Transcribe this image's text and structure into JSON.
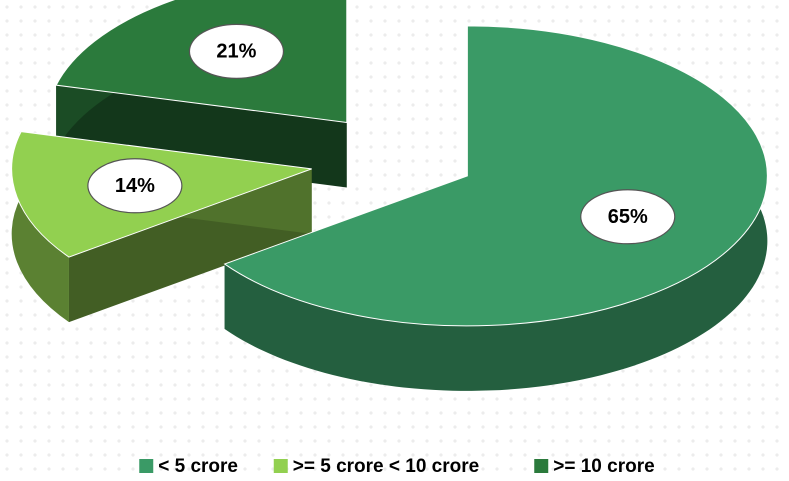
{
  "chart_data": {
    "type": "pie3d",
    "categories": [
      "< 5 crore",
      ">= 5 crore < 10 crore",
      ">= 10 crore"
    ],
    "values": [
      65,
      14,
      21
    ],
    "value_labels": [
      "65%",
      "14%",
      "21%"
    ],
    "colors": [
      "#3a9a66",
      "#92d050",
      "#2b7a3c"
    ],
    "legend": "bottom"
  }
}
